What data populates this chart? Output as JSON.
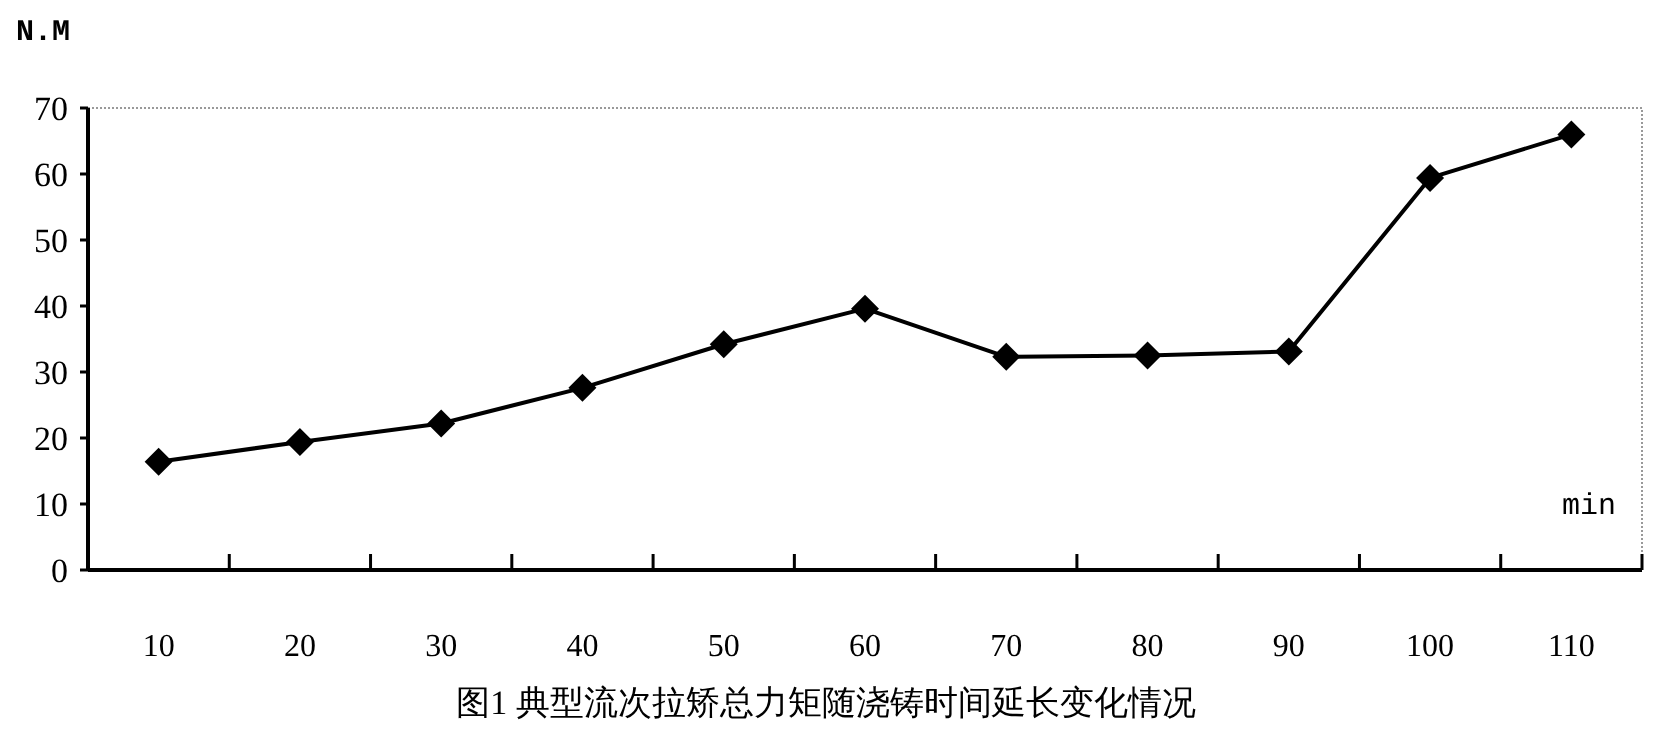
{
  "chart_data": {
    "type": "line",
    "title": "图1 典型流次拉矫总力矩随浇铸时间延长变化情况",
    "xlabel": "min",
    "ylabel": "N.M",
    "categories": [
      "10",
      "20",
      "30",
      "40",
      "50",
      "60",
      "70",
      "80",
      "90",
      "100",
      "110"
    ],
    "series": [
      {
        "color": "#000000",
        "values": [
          16.4,
          19.4,
          22.2,
          27.6,
          34.2,
          39.6,
          32.3,
          32.5,
          33.1,
          59.4,
          66.0
        ]
      }
    ],
    "ylim": [
      0,
      70
    ],
    "yticks": [
      0,
      10,
      20,
      30,
      40,
      50,
      60,
      70
    ],
    "marker": "diamond",
    "line_style": "solid"
  }
}
